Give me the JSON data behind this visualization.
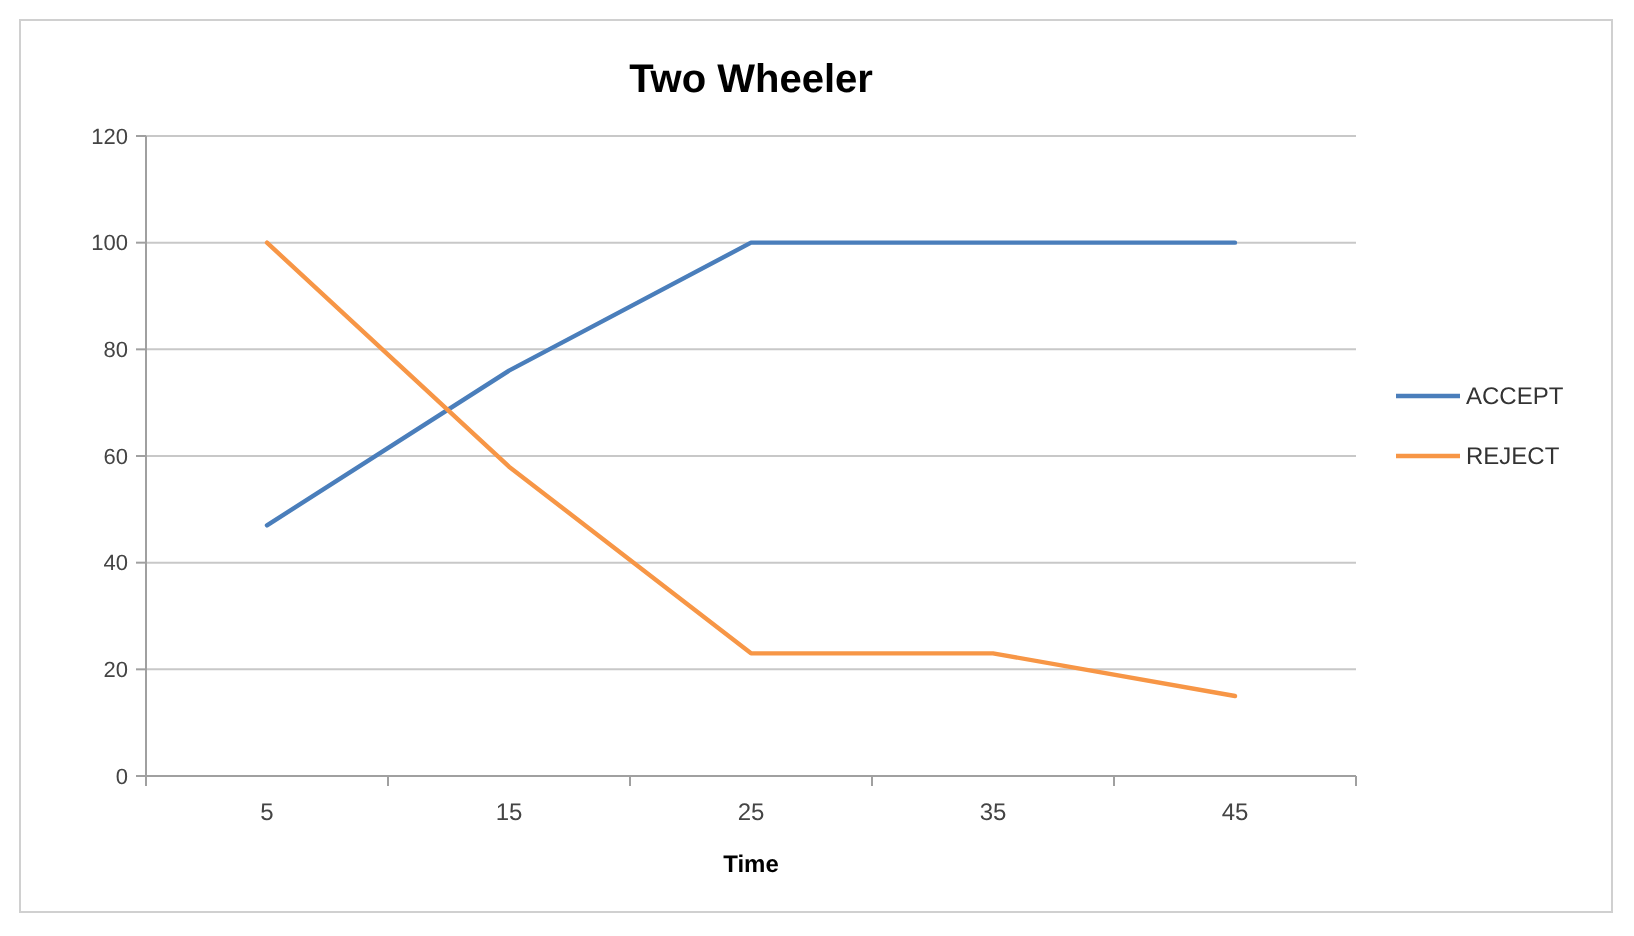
{
  "chart_data": {
    "type": "line",
    "title": "Two Wheeler",
    "xlabel": "Time",
    "categories": [
      "5",
      "15",
      "25",
      "35",
      "45"
    ],
    "series": [
      {
        "name": "ACCEPT",
        "color": "#4a7ebb",
        "values": [
          47,
          76,
          100,
          100,
          100
        ]
      },
      {
        "name": "REJECT",
        "color": "#f79646",
        "values": [
          100,
          58,
          23,
          23,
          15
        ]
      }
    ],
    "ylim": [
      0,
      120
    ],
    "yticks": [
      0,
      20,
      40,
      60,
      80,
      100,
      120
    ],
    "grid": "y",
    "legend": "right"
  }
}
